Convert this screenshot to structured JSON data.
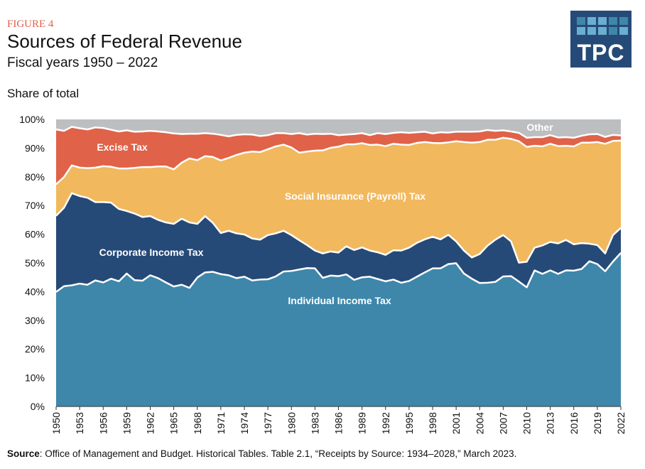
{
  "header": {
    "figure_label": "FIGURE 4",
    "title": "Sources of Federal Revenue",
    "subtitle": "Fiscal years 1950 – 2022",
    "logo_text": "TPC"
  },
  "source": {
    "label": "Source",
    "text": ": Office of Management and Budget. Historical Tables. Table 2.1, “Receipts by Source: 1934–2028,” March 2023."
  },
  "chart_data": {
    "type": "area",
    "stacked": true,
    "ylabel": "Share of total",
    "ylim": [
      0,
      100
    ],
    "xlim": [
      1950,
      2022
    ],
    "yticks": [
      "0%",
      "10%",
      "20%",
      "30%",
      "40%",
      "50%",
      "60%",
      "70%",
      "80%",
      "90%",
      "100%"
    ],
    "xticks": [
      1950,
      1953,
      1956,
      1959,
      1962,
      1965,
      1968,
      1971,
      1974,
      1977,
      1980,
      1983,
      1986,
      1989,
      1992,
      1995,
      1998,
      2001,
      2004,
      2007,
      2010,
      2013,
      2016,
      2019,
      2022
    ],
    "grid": false,
    "legend": "inline labels",
    "x": [
      1950,
      1951,
      1952,
      1953,
      1954,
      1955,
      1956,
      1957,
      1958,
      1959,
      1960,
      1961,
      1962,
      1963,
      1964,
      1965,
      1966,
      1967,
      1968,
      1969,
      1970,
      1971,
      1972,
      1973,
      1974,
      1975,
      1976,
      1977,
      1978,
      1979,
      1980,
      1981,
      1982,
      1983,
      1984,
      1985,
      1986,
      1987,
      1988,
      1989,
      1990,
      1991,
      1992,
      1993,
      1994,
      1995,
      1996,
      1997,
      1998,
      1999,
      2000,
      2001,
      2002,
      2003,
      2004,
      2005,
      2006,
      2007,
      2008,
      2009,
      2010,
      2011,
      2012,
      2013,
      2014,
      2015,
      2016,
      2017,
      2018,
      2019,
      2020,
      2021,
      2022
    ],
    "series": [
      {
        "name": "Individual Income Tax",
        "color": "#3e87aa",
        "values": [
          39.9,
          41.9,
          42.2,
          42.8,
          42.4,
          43.9,
          43.2,
          44.5,
          43.6,
          46.3,
          44.0,
          43.8,
          45.7,
          44.7,
          43.2,
          41.8,
          42.4,
          41.3,
          44.9,
          46.7,
          46.9,
          46.1,
          45.7,
          44.7,
          45.2,
          43.9,
          44.2,
          44.3,
          45.3,
          47.0,
          47.2,
          47.7,
          48.2,
          48.1,
          44.8,
          45.6,
          45.4,
          46.0,
          44.1,
          45.0,
          45.2,
          44.4,
          43.6,
          44.2,
          43.1,
          43.7,
          45.2,
          46.7,
          48.1,
          48.1,
          49.6,
          49.9,
          46.3,
          44.5,
          43.0,
          43.1,
          43.4,
          45.3,
          45.4,
          43.5,
          41.5,
          47.4,
          46.2,
          47.4,
          46.2,
          47.4,
          47.3,
          47.9,
          50.6,
          49.6,
          47.1,
          50.5,
          53.5
        ]
      },
      {
        "name": "Corporate Income Tax",
        "color": "#264a77",
        "values": [
          26.5,
          27.3,
          32.1,
          30.5,
          30.3,
          27.3,
          28.0,
          26.5,
          25.2,
          21.8,
          23.2,
          22.2,
          20.6,
          20.3,
          20.9,
          21.8,
          23.0,
          22.8,
          18.7,
          19.6,
          17.0,
          14.3,
          15.5,
          15.6,
          14.7,
          14.6,
          13.9,
          15.4,
          15.0,
          14.2,
          12.5,
          10.2,
          8.0,
          6.2,
          8.5,
          8.4,
          8.2,
          9.8,
          10.4,
          10.4,
          9.1,
          9.3,
          9.2,
          10.2,
          11.2,
          11.6,
          11.8,
          11.5,
          11.0,
          10.1,
          10.2,
          7.6,
          8.0,
          7.4,
          10.1,
          12.9,
          14.7,
          14.4,
          12.1,
          6.6,
          8.9,
          7.9,
          9.9,
          9.9,
          10.6,
          10.6,
          9.2,
          9.0,
          6.1,
          6.6,
          6.2,
          9.2,
          8.7
        ]
      },
      {
        "name": "Social Insurance (Payroll) Tax",
        "color": "#f1b85e",
        "values": [
          11.0,
          10.7,
          9.7,
          9.9,
          10.3,
          12.0,
          12.5,
          12.5,
          14.1,
          14.8,
          15.9,
          17.4,
          17.1,
          18.6,
          19.5,
          19.0,
          19.5,
          22.3,
          22.2,
          20.9,
          23.0,
          25.3,
          25.4,
          27.3,
          28.5,
          30.3,
          30.5,
          29.9,
          30.3,
          30.0,
          30.5,
          30.5,
          32.6,
          34.8,
          35.9,
          36.1,
          36.9,
          35.5,
          36.8,
          36.3,
          36.8,
          37.5,
          37.9,
          37.1,
          36.9,
          35.8,
          34.8,
          33.9,
          32.7,
          33.5,
          32.2,
          34.9,
          37.8,
          40.0,
          39.0,
          36.9,
          34.8,
          33.9,
          35.7,
          42.3,
          40.0,
          35.5,
          34.5,
          34.2,
          33.9,
          32.8,
          34.1,
          35.0,
          35.2,
          35.9,
          38.2,
          32.8,
          30.4
        ]
      },
      {
        "name": "Excise Tax",
        "color": "#e06248",
        "values": [
          19.1,
          16.1,
          13.4,
          13.7,
          13.5,
          14.0,
          13.3,
          12.9,
          12.9,
          13.3,
          12.6,
          12.4,
          12.6,
          12.2,
          11.9,
          12.5,
          10.0,
          8.6,
          9.2,
          8.0,
          8.1,
          8.9,
          7.5,
          7.0,
          6.4,
          5.9,
          5.6,
          4.9,
          4.6,
          4.0,
          4.7,
          6.8,
          5.9,
          5.9,
          5.7,
          4.9,
          4.0,
          3.4,
          3.6,
          3.5,
          3.4,
          4.0,
          4.2,
          3.8,
          4.3,
          4.2,
          3.7,
          3.6,
          3.3,
          3.8,
          3.4,
          3.3,
          3.6,
          3.8,
          3.7,
          3.4,
          3.1,
          2.6,
          2.6,
          2.9,
          3.2,
          3.0,
          3.2,
          3.0,
          3.0,
          3.0,
          3.0,
          2.4,
          2.9,
          2.8,
          2.4,
          2.1,
          1.8
        ]
      },
      {
        "name": "Other",
        "color": "#bdbec0",
        "values": "remainder to 100%"
      }
    ]
  }
}
